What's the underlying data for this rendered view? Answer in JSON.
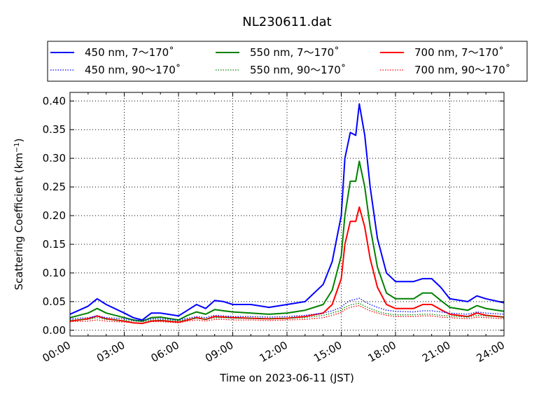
{
  "chart_data": {
    "type": "line",
    "title": "NL230611.dat",
    "xlabel": "Time on 2023-06-11 (JST)",
    "ylabel": "Scattering Coefficient (km",
    "ylabel_sup": "−1",
    "ylabel_end": ")",
    "xlim": [
      0,
      24
    ],
    "ylim": [
      -0.01,
      0.415
    ],
    "xticks": [
      {
        "value": 0,
        "label": "00:00"
      },
      {
        "value": 3,
        "label": "03:00"
      },
      {
        "value": 6,
        "label": "06:00"
      },
      {
        "value": 9,
        "label": "09:00"
      },
      {
        "value": 12,
        "label": "12:00"
      },
      {
        "value": 15,
        "label": "15:00"
      },
      {
        "value": 18,
        "label": "18:00"
      },
      {
        "value": 21,
        "label": "21:00"
      },
      {
        "value": 24,
        "label": "24:00"
      }
    ],
    "yticks": [
      {
        "value": 0.0,
        "label": "0.00"
      },
      {
        "value": 0.05,
        "label": "0.05"
      },
      {
        "value": 0.1,
        "label": "0.10"
      },
      {
        "value": 0.15,
        "label": "0.15"
      },
      {
        "value": 0.2,
        "label": "0.20"
      },
      {
        "value": 0.25,
        "label": "0.25"
      },
      {
        "value": 0.3,
        "label": "0.30"
      },
      {
        "value": 0.35,
        "label": "0.35"
      },
      {
        "value": 0.4,
        "label": "0.40"
      }
    ],
    "grid": true,
    "legend_position": "top",
    "x": [
      0,
      1,
      1.5,
      2,
      3,
      3.5,
      4,
      4.5,
      5,
      6,
      6.5,
      7,
      7.5,
      8,
      8.5,
      9,
      10,
      11,
      12,
      13,
      14,
      14.5,
      15,
      15.2,
      15.5,
      15.8,
      16,
      16.3,
      16.6,
      17,
      17.5,
      18,
      19,
      19.5,
      20,
      20.5,
      21,
      22,
      22.5,
      23,
      24
    ],
    "series": [
      {
        "name": "450 nm, 7～170˚",
        "color": "#0000ff",
        "style": "solid",
        "values": [
          0.028,
          0.042,
          0.055,
          0.045,
          0.03,
          0.022,
          0.018,
          0.03,
          0.03,
          0.025,
          0.035,
          0.045,
          0.038,
          0.052,
          0.05,
          0.045,
          0.045,
          0.04,
          0.045,
          0.05,
          0.08,
          0.12,
          0.2,
          0.3,
          0.345,
          0.34,
          0.395,
          0.34,
          0.25,
          0.16,
          0.1,
          0.085,
          0.085,
          0.09,
          0.09,
          0.075,
          0.055,
          0.05,
          0.06,
          0.055,
          0.048
        ]
      },
      {
        "name": "550 nm, 7～170˚",
        "color": "#008000",
        "style": "solid",
        "values": [
          0.022,
          0.03,
          0.038,
          0.03,
          0.022,
          0.018,
          0.016,
          0.022,
          0.023,
          0.018,
          0.026,
          0.032,
          0.028,
          0.036,
          0.034,
          0.032,
          0.03,
          0.028,
          0.03,
          0.035,
          0.045,
          0.07,
          0.13,
          0.2,
          0.26,
          0.26,
          0.295,
          0.25,
          0.18,
          0.11,
          0.065,
          0.055,
          0.055,
          0.065,
          0.065,
          0.052,
          0.04,
          0.035,
          0.043,
          0.038,
          0.033
        ]
      },
      {
        "name": "700 nm, 7～170˚",
        "color": "#ff0000",
        "style": "solid",
        "values": [
          0.016,
          0.02,
          0.025,
          0.02,
          0.016,
          0.013,
          0.012,
          0.016,
          0.017,
          0.014,
          0.018,
          0.022,
          0.019,
          0.024,
          0.023,
          0.022,
          0.021,
          0.02,
          0.021,
          0.024,
          0.03,
          0.045,
          0.09,
          0.15,
          0.19,
          0.19,
          0.215,
          0.18,
          0.125,
          0.075,
          0.045,
          0.038,
          0.038,
          0.045,
          0.045,
          0.036,
          0.028,
          0.024,
          0.03,
          0.026,
          0.023
        ]
      },
      {
        "name": "450 nm, 90～170˚",
        "color": "#0000ff",
        "style": "dotted",
        "values": [
          0.02,
          0.022,
          0.025,
          0.022,
          0.02,
          0.018,
          0.017,
          0.02,
          0.02,
          0.018,
          0.021,
          0.024,
          0.022,
          0.026,
          0.025,
          0.024,
          0.024,
          0.023,
          0.024,
          0.026,
          0.03,
          0.034,
          0.04,
          0.046,
          0.052,
          0.054,
          0.056,
          0.05,
          0.045,
          0.04,
          0.035,
          0.033,
          0.032,
          0.034,
          0.034,
          0.032,
          0.03,
          0.028,
          0.032,
          0.03,
          0.028
        ]
      },
      {
        "name": "550 nm, 90～170˚",
        "color": "#008000",
        "style": "dotted",
        "values": [
          0.018,
          0.019,
          0.022,
          0.019,
          0.017,
          0.016,
          0.015,
          0.018,
          0.018,
          0.016,
          0.019,
          0.021,
          0.019,
          0.022,
          0.022,
          0.021,
          0.021,
          0.02,
          0.021,
          0.022,
          0.026,
          0.03,
          0.035,
          0.04,
          0.044,
          0.046,
          0.047,
          0.042,
          0.038,
          0.033,
          0.029,
          0.027,
          0.027,
          0.028,
          0.028,
          0.026,
          0.025,
          0.023,
          0.026,
          0.025,
          0.023
        ]
      },
      {
        "name": "700 nm, 90～170˚",
        "color": "#ff0000",
        "style": "dotted",
        "values": [
          0.015,
          0.016,
          0.018,
          0.016,
          0.014,
          0.013,
          0.012,
          0.015,
          0.015,
          0.013,
          0.016,
          0.018,
          0.016,
          0.019,
          0.019,
          0.018,
          0.018,
          0.017,
          0.018,
          0.019,
          0.022,
          0.026,
          0.031,
          0.036,
          0.04,
          0.042,
          0.043,
          0.038,
          0.034,
          0.03,
          0.026,
          0.024,
          0.024,
          0.025,
          0.025,
          0.023,
          0.022,
          0.02,
          0.023,
          0.022,
          0.02
        ]
      }
    ]
  }
}
